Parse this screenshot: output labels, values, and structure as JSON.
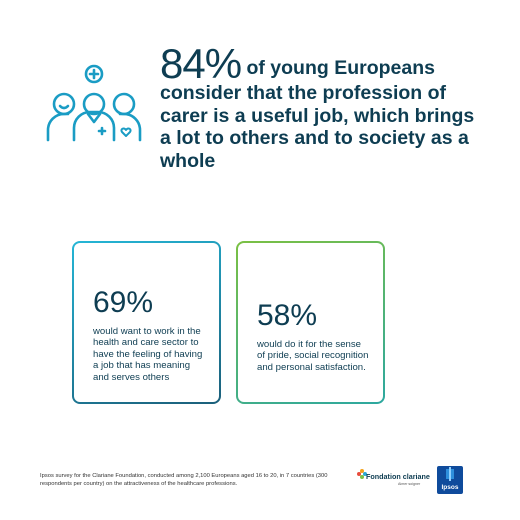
{
  "headline": {
    "percent": "84%",
    "text": " of young Europeans consider that the profession of carer is a useful job, which brings a lot to others and to society as a whole"
  },
  "stats": [
    {
      "percent": "69%",
      "text": "would want to work in the health and care sector to have the feeling of having a job that has meaning and serves others"
    },
    {
      "percent": "58%",
      "text": "would do it for the sense of pride, social recognition and personal satisfaction."
    }
  ],
  "footnote": "Ipsos survey for the Clariane Foundation, conducted among 2,100 Europeans aged 16 to 20, in 7 countries (300 respondents per country) on the attractiveness of the healthcare professions.",
  "logos": {
    "clariane_name": "Fondation clariane",
    "clariane_sub": "Aimer soigner",
    "ipsos_name": "Ipsos"
  },
  "colors": {
    "navy": "#0e3d52",
    "teal": "#25b6d6",
    "green": "#7bc043",
    "ipsos_blue": "#0f4b9c"
  }
}
